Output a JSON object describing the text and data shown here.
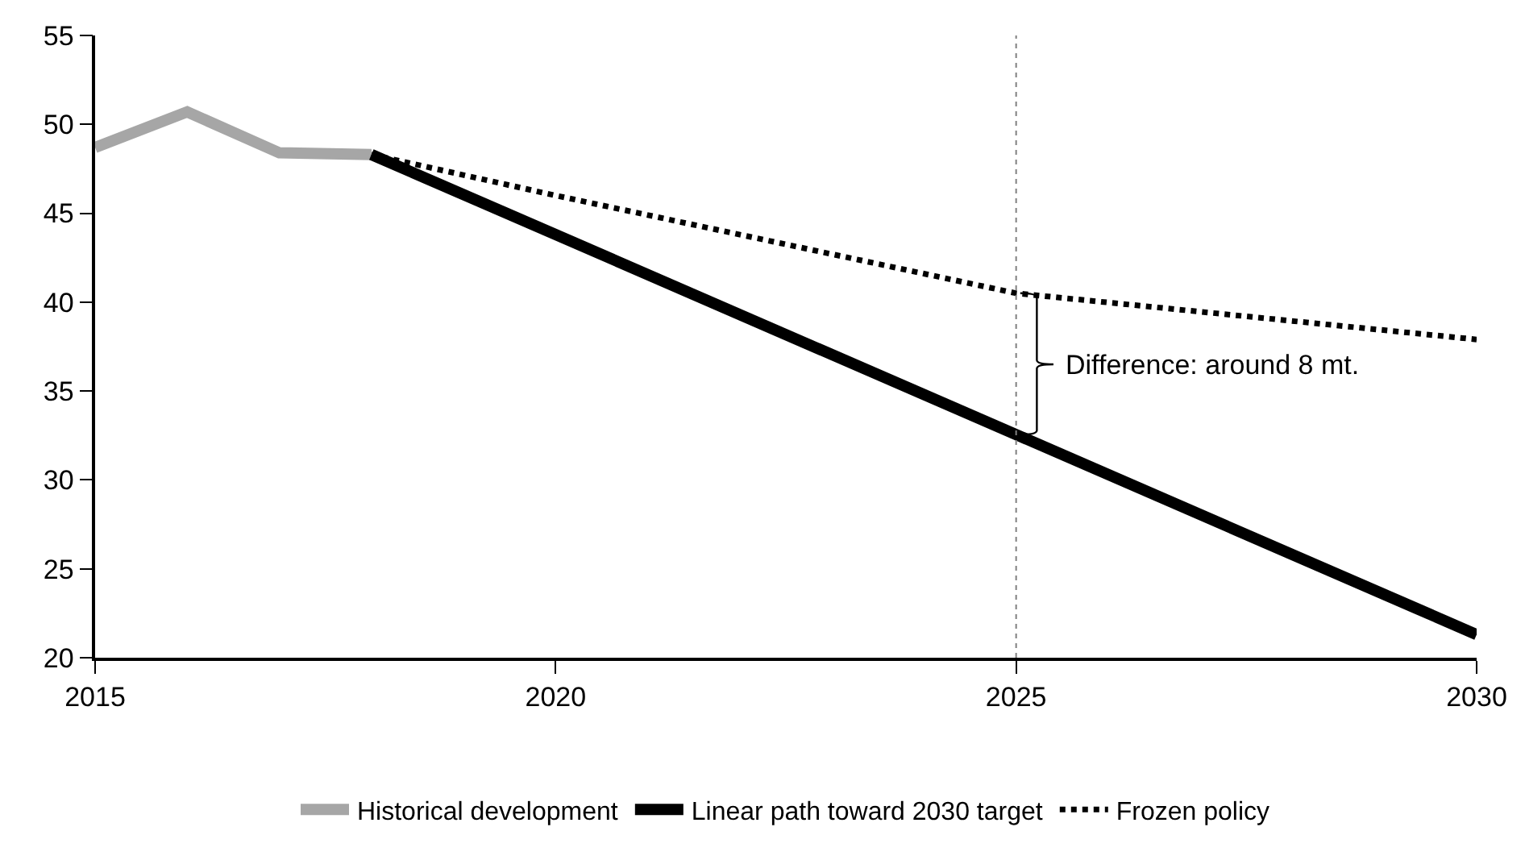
{
  "chart_data": {
    "type": "line",
    "series": [
      {
        "name": "Historical development",
        "color": "#a6a6a6",
        "x": [
          2015,
          2016,
          2017,
          2018
        ],
        "values": [
          48.7,
          50.7,
          48.4,
          48.3
        ],
        "line_style": "solid"
      },
      {
        "name": "Linear path toward 2030 target",
        "color": "#000000",
        "x": [
          2018,
          2030
        ],
        "values": [
          48.3,
          21.3
        ],
        "line_style": "solid"
      },
      {
        "name": "Frozen policy",
        "color": "#000000",
        "x": [
          2018,
          2020,
          2025,
          2030
        ],
        "values": [
          48.3,
          46.0,
          40.5,
          37.9
        ],
        "line_style": "dotted"
      }
    ],
    "xlim": [
      2015,
      2030
    ],
    "xticks": [
      2015,
      2020,
      2025,
      2030
    ],
    "ylim": [
      20,
      55
    ],
    "yticks": [
      20,
      25,
      30,
      35,
      40,
      45,
      50,
      55
    ],
    "ref_lines": [
      {
        "axis": "x",
        "value": 2025,
        "color": "#808080",
        "line_style": "dotted"
      }
    ],
    "annotations": [
      {
        "text": "Difference: around 8 mt.",
        "x": 2025,
        "y": 36.5
      }
    ],
    "grid": false,
    "legend": "bottom",
    "marker": "none"
  }
}
